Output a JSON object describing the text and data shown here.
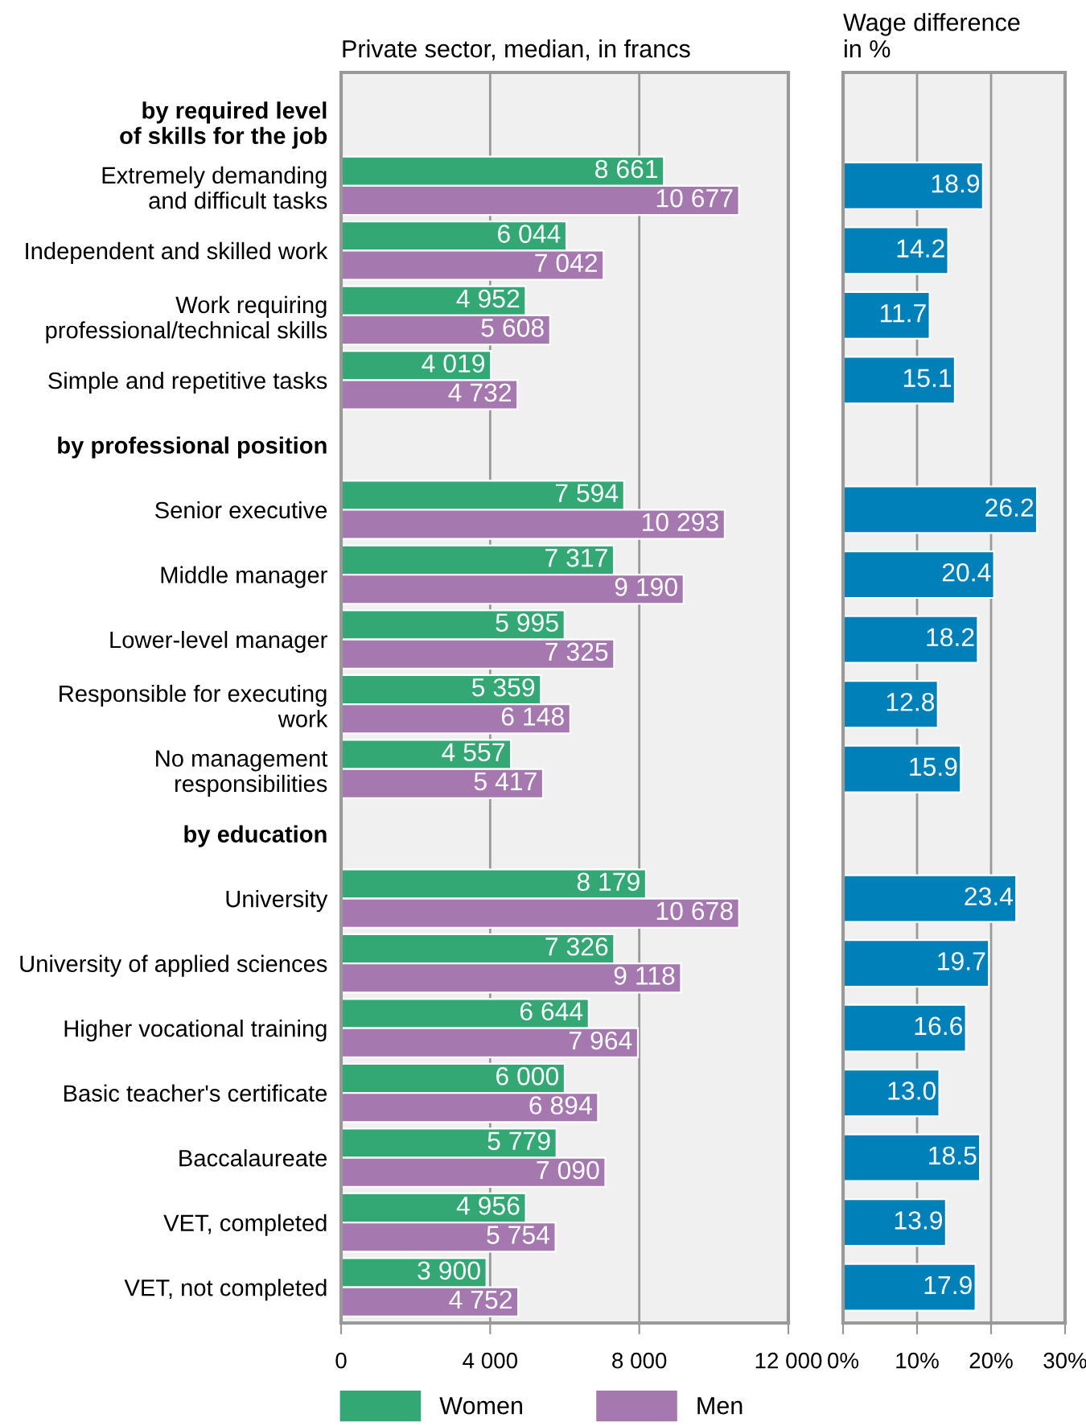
{
  "chart_data": [
    {
      "type": "bar",
      "orientation": "horizontal",
      "title": "Private sector, median, in francs",
      "categories": [
        "by required level\nof skills for the job",
        "Extremely demanding\nand difficult tasks",
        "Independent and skilled work",
        "Work requiring\nprofessional/technical skills",
        "Simple and repetitive tasks",
        "by professional position",
        "Senior executive",
        "Middle manager",
        "Lower-level manager",
        "Responsible for executing\nwork",
        "No management\nresponsibilities",
        "by education",
        "University",
        "University of applied sciences",
        "Higher vocational training",
        "Basic teacher's certificate",
        "Baccalaureate",
        "VET, completed",
        "VET, not completed"
      ],
      "series": [
        {
          "name": "Women",
          "color": "#33a875",
          "values": [
            null,
            8661,
            6044,
            4952,
            4019,
            null,
            7594,
            7317,
            5995,
            5359,
            4557,
            null,
            8179,
            7326,
            6644,
            6000,
            5779,
            4956,
            3900
          ],
          "value_labels": [
            null,
            "8 661",
            "6 044",
            "4 952",
            "4 019",
            null,
            "7 594",
            "7 317",
            "5 995",
            "5 359",
            "4 557",
            null,
            "8 179",
            "7 326",
            "6 644",
            "6 000",
            "5 779",
            "4 956",
            "3 900"
          ]
        },
        {
          "name": "Men",
          "color": "#a678b0",
          "values": [
            null,
            10677,
            7042,
            5608,
            4732,
            null,
            10293,
            9190,
            7325,
            6148,
            5417,
            null,
            10678,
            9118,
            7964,
            6894,
            7090,
            5754,
            4752
          ],
          "value_labels": [
            null,
            "10 677",
            "7 042",
            "5 608",
            "4 732",
            null,
            "10 293",
            "9 190",
            "7 325",
            "6 148",
            "5 417",
            null,
            "10 678",
            "9 118",
            "7 964",
            "6 894",
            "7 090",
            "5 754",
            "4 752"
          ]
        }
      ],
      "xlim": [
        0,
        12000
      ],
      "xticks": [
        0,
        {
          "value": 4000,
          "label": "4 000"
        },
        {
          "value": 8000,
          "label": "8 000"
        },
        {
          "value": 12000,
          "label": "12 000"
        }
      ],
      "grid": "x",
      "legend": "bottom"
    },
    {
      "type": "bar",
      "orientation": "horizontal",
      "title": "Wage difference\nin %",
      "categories": [
        null,
        null,
        null,
        null,
        null,
        null,
        null,
        null,
        null,
        null,
        null,
        null,
        null,
        null,
        null,
        null,
        null,
        null,
        null
      ],
      "series": [
        {
          "color": "#0080b8",
          "values": [
            null,
            18.9,
            14.2,
            11.7,
            15.1,
            null,
            26.2,
            20.4,
            18.2,
            12.8,
            15.9,
            null,
            23.4,
            19.7,
            16.6,
            13.0,
            18.5,
            13.9,
            17.9
          ]
        }
      ],
      "xlim": [
        0,
        30
      ],
      "xticks": [
        {
          "value": 0,
          "label": "0%"
        },
        {
          "value": 10,
          "label": "10%"
        },
        {
          "value": 20,
          "label": "20%"
        },
        {
          "value": 30,
          "label": "30%"
        }
      ],
      "grid": "x",
      "value_labels": [
        null,
        "18.9",
        "14.2",
        "11.7",
        "15.1",
        null,
        "26.2",
        "20.4",
        "18.2",
        "12.8",
        "15.9",
        null,
        "23.4",
        "19.7",
        "16.6",
        "13.0",
        "18.5",
        "13.9",
        "17.9"
      ]
    }
  ]
}
